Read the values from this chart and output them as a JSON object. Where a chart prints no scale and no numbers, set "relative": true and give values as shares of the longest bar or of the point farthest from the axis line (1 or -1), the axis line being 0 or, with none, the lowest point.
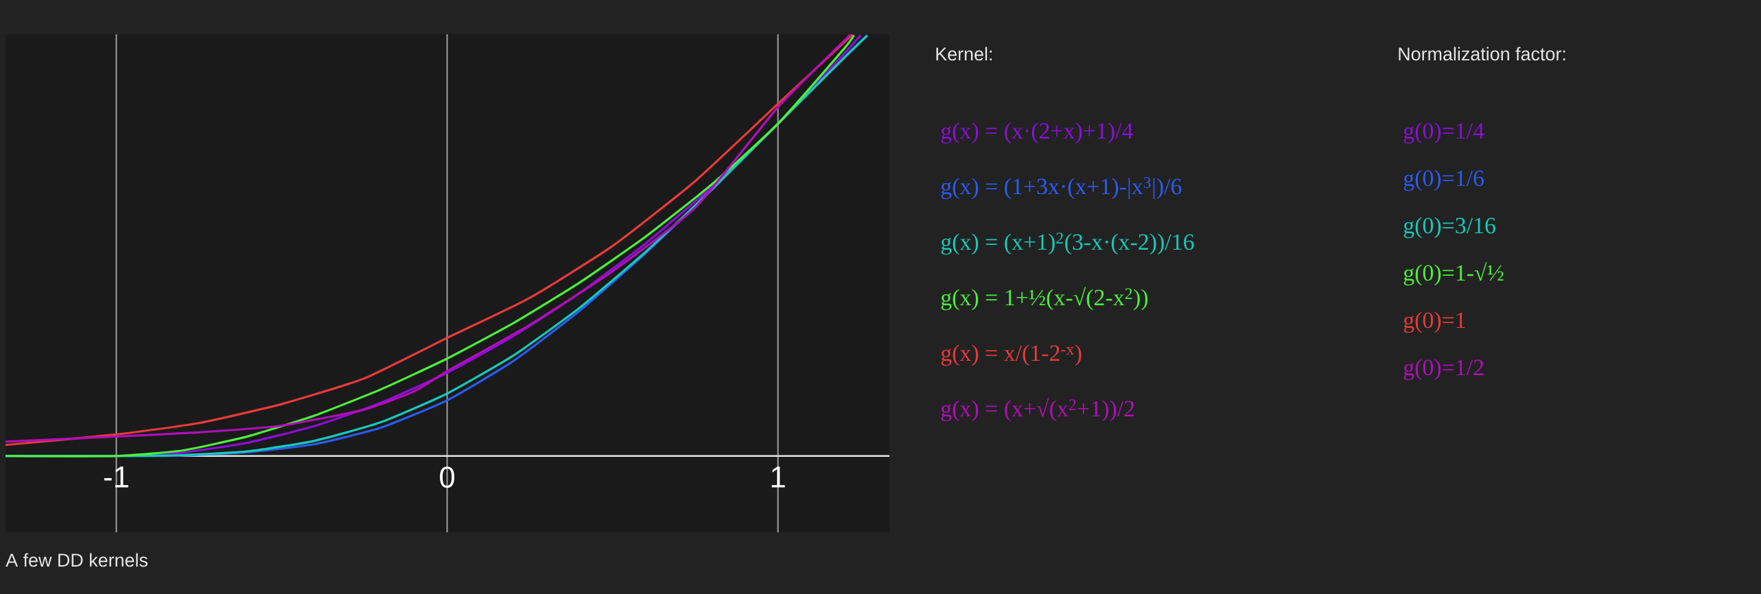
{
  "chart_data": {
    "type": "line",
    "relative": true,
    "xlim": [
      -1.335,
      1.337
    ],
    "xticks": [
      -1,
      0,
      1
    ],
    "grid": "x",
    "legend": "right",
    "legend_title": "Kernel:",
    "series": [
      {
        "name": "g(x) = (x·(2+x)+1)/4",
        "color": "#8b0fd6",
        "x": [
          -1.335,
          -1,
          -0.8,
          -0.6,
          -0.4,
          -0.2,
          0,
          0.2,
          0.4,
          0.6,
          0.8,
          1,
          1.2,
          1.25
        ],
        "values": [
          0,
          0,
          0.008,
          0.032,
          0.071,
          0.126,
          0.197,
          0.284,
          0.386,
          0.504,
          0.638,
          0.788,
          0.954,
          0.998
        ]
      },
      {
        "name": "g(x) = (1+3x·(x+1)-|x$^{3}$|)/6",
        "color": "#2a5cf0",
        "x": [
          -1.335,
          -1,
          -0.8,
          -0.6,
          -0.4,
          -0.2,
          0,
          0.2,
          0.4,
          0.6,
          0.8,
          1,
          1.2,
          1.27
        ],
        "values": [
          0,
          0,
          0.001,
          0.009,
          0.028,
          0.067,
          0.132,
          0.225,
          0.344,
          0.481,
          0.631,
          0.788,
          0.945,
          0.998
        ]
      },
      {
        "name": "g(x) = (x+1)$^{2}$(3-x·(x-2))/16",
        "color": "#18c9b8",
        "x": [
          -1.335,
          -1,
          -0.8,
          -0.6,
          -0.4,
          -0.2,
          0,
          0.2,
          0.4,
          0.6,
          0.8,
          1,
          1.2,
          1.27
        ],
        "values": [
          0,
          0,
          0.002,
          0.011,
          0.036,
          0.08,
          0.148,
          0.238,
          0.351,
          0.484,
          0.632,
          0.788,
          0.944,
          0.997
        ]
      },
      {
        "name": "g(x) = 1+½(x-√(2-x$^{2}$))",
        "color": "#4cf03a",
        "x": [
          -1.335,
          -1,
          -0.8,
          -0.6,
          -0.4,
          -0.2,
          0,
          0.2,
          0.4,
          0.6,
          0.8,
          1,
          1.2,
          1.23
        ],
        "values": [
          0,
          0,
          0.013,
          0.047,
          0.096,
          0.158,
          0.231,
          0.315,
          0.411,
          0.52,
          0.644,
          0.788,
          0.966,
          0.998
        ]
      },
      {
        "name": "g(x) = x/(1-2$^{-x}$)",
        "color": "#e83a3a",
        "x": [
          -1.335,
          -1,
          -0.75,
          -0.5,
          -0.25,
          0,
          0.25,
          0.5,
          0.75,
          1,
          1.226
        ],
        "values": [
          0.026,
          0.051,
          0.078,
          0.123,
          0.184,
          0.28,
          0.375,
          0.498,
          0.652,
          0.835,
          1
        ]
      },
      {
        "name": "g(x) = (x+√(x$^{2}$+1))/2",
        "color": "#b00fb8",
        "x": [
          -1.335,
          -1,
          -0.75,
          -0.5,
          -0.25,
          -0.1,
          0,
          0.25,
          0.5,
          0.75,
          1,
          1.22
        ],
        "values": [
          0.034,
          0.046,
          0.056,
          0.072,
          0.11,
          0.153,
          0.201,
          0.311,
          0.438,
          0.589,
          0.827,
          1
        ]
      }
    ],
    "annotations": [
      "Normalization factor:",
      "g(0)=1/4",
      "g(0)=1/6",
      "g(0)=3/16",
      "g(0)=1-√½",
      "g(0)=1",
      "g(0)=1/2",
      "A few DD kernels"
    ]
  }
}
